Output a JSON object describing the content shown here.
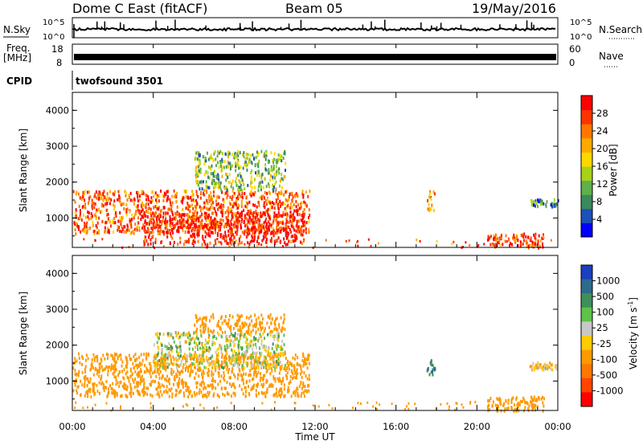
{
  "header": {
    "title": "Dome C East (fitACF)",
    "beam": "Beam 05",
    "date": "19/May/2016"
  },
  "nsky_panel": {
    "left_label": "N.Sky",
    "right_label": "N.Search",
    "left_ticks": [
      "10^5",
      "10^0"
    ],
    "right_ticks": [
      "10^5",
      "10^0"
    ]
  },
  "freq_panel": {
    "left_label_1": "Freq.",
    "left_label_2": "[MHz]",
    "right_label": "Nave",
    "left_ticks": [
      "18",
      "8"
    ],
    "right_ticks": [
      "60",
      "0"
    ]
  },
  "cpid": {
    "label": "CPID",
    "value": "twofsound 3501"
  },
  "x_axis": {
    "label": "Time UT",
    "ticks": [
      "00:00",
      "04:00",
      "08:00",
      "12:00",
      "16:00",
      "20:00",
      "00:00"
    ],
    "range_hours": [
      0,
      24
    ]
  },
  "y_axis": {
    "label": "Slant Range [km]",
    "ticks": [
      "1000",
      "2000",
      "3000",
      "4000"
    ],
    "range_km": [
      180,
      4500
    ]
  },
  "power_colorbar": {
    "label": "Power [dB]",
    "ticks": [
      "4",
      "8",
      "12",
      "16",
      "20",
      "24",
      "28"
    ],
    "colors": [
      "#0000ff",
      "#1f4fb8",
      "#3b8a5c",
      "#5fb04a",
      "#a8d218",
      "#ffd700",
      "#ffaa00",
      "#ff7700",
      "#ff3300",
      "#ff0000"
    ]
  },
  "velocity_colorbar": {
    "label": "Velocity",
    "unit": "[m s",
    "unit_sup": "-1",
    "unit_end": "]",
    "ticks": [
      "1000",
      "500",
      "100",
      "25",
      "-25",
      "-100",
      "-500",
      "-1000"
    ],
    "colors": [
      "#1a3fbf",
      "#2e6b8a",
      "#3f8f5a",
      "#5ec24a",
      "#c8c8c8",
      "#ffcc00",
      "#ff9900",
      "#ff7700",
      "#ff4400",
      "#ff0000"
    ]
  },
  "chart_data": [
    {
      "type": "heatmap",
      "title": "Power [dB]",
      "x_units": "hours UT",
      "y_units": "km",
      "xlim": [
        0,
        24
      ],
      "ylim": [
        180,
        4500
      ],
      "regions": [
        {
          "t0": 0.0,
          "t1": 11.7,
          "r0": 600,
          "r1": 1800,
          "value": 26
        },
        {
          "t0": 3.5,
          "t1": 11.5,
          "r0": 300,
          "r1": 1200,
          "value": 30
        },
        {
          "t0": 6.0,
          "t1": 10.5,
          "r0": 1800,
          "r1": 2900,
          "value": 14
        },
        {
          "t0": 17.5,
          "t1": 17.9,
          "r0": 1200,
          "r1": 1800,
          "value": 22
        },
        {
          "t0": 20.5,
          "t1": 23.3,
          "r0": 200,
          "r1": 600,
          "value": 28
        },
        {
          "t0": 22.6,
          "t1": 24.0,
          "r0": 1350,
          "r1": 1550,
          "value": 10
        }
      ]
    },
    {
      "type": "heatmap",
      "title": "Velocity [m s-1]",
      "x_units": "hours UT",
      "y_units": "km",
      "xlim": [
        0,
        24
      ],
      "ylim": [
        180,
        4500
      ],
      "regions": [
        {
          "t0": 0.0,
          "t1": 11.7,
          "r0": 600,
          "r1": 1800,
          "value": -200
        },
        {
          "t0": 4.0,
          "t1": 10.5,
          "r0": 1400,
          "r1": 2400,
          "value": 0
        },
        {
          "t0": 6.0,
          "t1": 10.5,
          "r0": 2400,
          "r1": 2900,
          "value": -150
        },
        {
          "t0": 17.5,
          "t1": 17.9,
          "r0": 1200,
          "r1": 1800,
          "value": 300
        },
        {
          "t0": 20.5,
          "t1": 23.3,
          "r0": 200,
          "r1": 600,
          "value": -200
        },
        {
          "t0": 22.6,
          "t1": 24.0,
          "r0": 1350,
          "r1": 1550,
          "value": -60
        }
      ]
    }
  ]
}
